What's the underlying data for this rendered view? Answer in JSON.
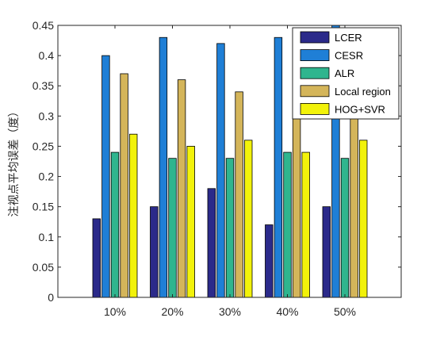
{
  "chart_data": {
    "type": "bar",
    "ylabel": "注视点平均误差（度）",
    "xlabel": "",
    "title": "",
    "categories": [
      "10%",
      "20%",
      "30%",
      "40%",
      "50%"
    ],
    "ylim": [
      0,
      0.45
    ],
    "yticks": [
      0,
      0.05,
      0.1,
      0.15,
      0.2,
      0.25,
      0.3,
      0.35,
      0.4,
      0.45
    ],
    "ytick_labels": [
      "0",
      "0.05",
      "0.1",
      "0.15",
      "0.2",
      "0.25",
      "0.3",
      "0.35",
      "0.4",
      "0.45"
    ],
    "grid": false,
    "legend_position": "top-right",
    "series": [
      {
        "name": "LCER",
        "color": "#2b2a8a",
        "values": [
          0.13,
          0.15,
          0.18,
          0.12,
          0.15
        ]
      },
      {
        "name": "CESR",
        "color": "#1f7fd6",
        "values": [
          0.4,
          0.43,
          0.42,
          0.43,
          0.45
        ]
      },
      {
        "name": "ALR",
        "color": "#2fb58e",
        "values": [
          0.24,
          0.23,
          0.23,
          0.24,
          0.23
        ]
      },
      {
        "name": "Local region",
        "color": "#d4b55a",
        "values": [
          0.37,
          0.36,
          0.34,
          0.33,
          0.33
        ]
      },
      {
        "name": "HOG+SVR",
        "color": "#f2f20a",
        "values": [
          0.27,
          0.25,
          0.26,
          0.24,
          0.26
        ]
      }
    ]
  }
}
